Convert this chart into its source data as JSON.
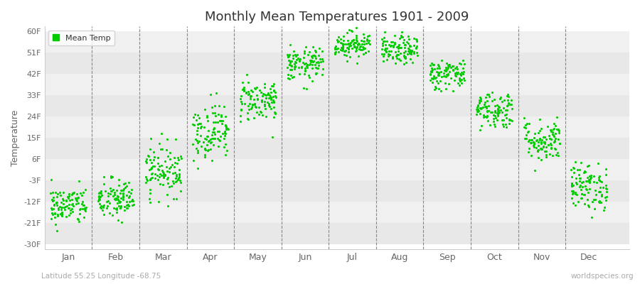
{
  "title": "Monthly Mean Temperatures 1901 - 2009",
  "ylabel": "Temperature",
  "xlabel_bottom_left": "Latitude 55.25 Longitude -68.75",
  "xlabel_bottom_right": "worldspecies.org",
  "legend_label": "Mean Temp",
  "dot_color": "#00cc00",
  "background_color": "#ffffff",
  "plot_bg_color": "#ffffff",
  "yticks": [
    -30,
    -21,
    -12,
    -3,
    6,
    15,
    24,
    33,
    42,
    51,
    60
  ],
  "ytick_labels": [
    "-30F",
    "-21F",
    "-12F",
    "-3F",
    "6F",
    "15F",
    "24F",
    "33F",
    "42F",
    "51F",
    "60F"
  ],
  "months": [
    "Jan",
    "Feb",
    "Mar",
    "Apr",
    "May",
    "Jun",
    "Jul",
    "Aug",
    "Sep",
    "Oct",
    "Nov",
    "Dec"
  ],
  "month_centers": [
    1.0,
    2.0,
    3.0,
    4.0,
    5.0,
    6.0,
    7.0,
    8.0,
    9.0,
    10.0,
    11.0,
    12.0
  ],
  "ylim": [
    -32,
    62
  ],
  "xlim": [
    0.5,
    12.85
  ],
  "num_years": 109,
  "seed": 42,
  "mean_temps_f": [
    -13.5,
    -11.0,
    1.5,
    18.0,
    31.0,
    46.0,
    54.5,
    52.0,
    42.0,
    27.0,
    14.0,
    -5.5
  ],
  "std_temps_f": [
    4.0,
    4.5,
    5.5,
    6.0,
    4.5,
    3.5,
    2.8,
    3.0,
    3.2,
    4.0,
    4.5,
    5.0
  ],
  "x_spread": 0.38,
  "band_colors": [
    "#e8e8e8",
    "#f0f0f0"
  ],
  "dashed_color": "#888888",
  "tick_color": "#666666",
  "spine_color": "#cccccc",
  "dot_size": 5
}
